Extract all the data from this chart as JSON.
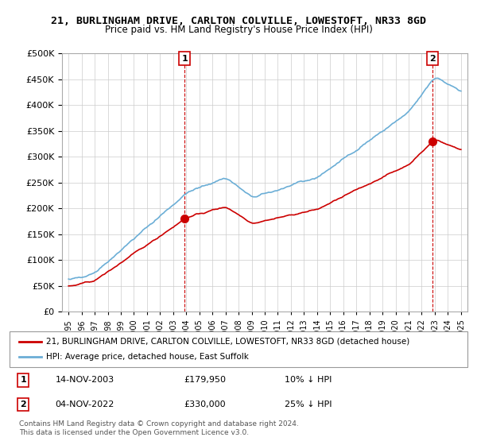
{
  "title": "21, BURLINGHAM DRIVE, CARLTON COLVILLE, LOWESTOFT, NR33 8GD",
  "subtitle": "Price paid vs. HM Land Registry's House Price Index (HPI)",
  "legend_line1": "21, BURLINGHAM DRIVE, CARLTON COLVILLE, LOWESTOFT, NR33 8GD (detached house)",
  "legend_line2": "HPI: Average price, detached house, East Suffolk",
  "sale1_date": "14-NOV-2003",
  "sale1_price": "£179,950",
  "sale1_hpi": "10% ↓ HPI",
  "sale1_year": 2003.87,
  "sale1_value": 179950,
  "sale2_date": "04-NOV-2022",
  "sale2_price": "£330,000",
  "sale2_hpi": "25% ↓ HPI",
  "sale2_year": 2022.84,
  "sale2_value": 330000,
  "footer": "Contains HM Land Registry data © Crown copyright and database right 2024.\nThis data is licensed under the Open Government Licence v3.0.",
  "hpi_color": "#6baed6",
  "price_color": "#cc0000",
  "marker_color": "#cc0000",
  "vline_color": "#cc0000",
  "background_color": "#ffffff",
  "grid_color": "#cccccc",
  "ylim": [
    0,
    500000
  ],
  "xlim_start": 1994.5,
  "xlim_end": 2025.5
}
